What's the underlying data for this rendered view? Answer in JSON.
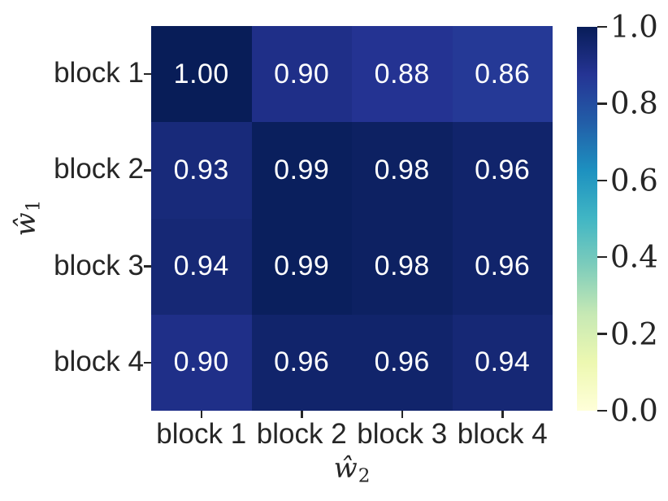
{
  "chart_data": {
    "type": "heatmap",
    "colormap": {
      "name": "YlGnBu",
      "stops": [
        [
          0.0,
          "#ffffd9"
        ],
        [
          0.125,
          "#edf8b1"
        ],
        [
          0.25,
          "#c7e9b4"
        ],
        [
          0.375,
          "#7fcdbb"
        ],
        [
          0.5,
          "#41b6c4"
        ],
        [
          0.625,
          "#1d91c0"
        ],
        [
          0.75,
          "#225ea8"
        ],
        [
          0.875,
          "#253494"
        ],
        [
          1.0,
          "#081d58"
        ]
      ]
    },
    "x_axis": {
      "label_base": "ŵ",
      "label_sub": "2",
      "categories": [
        "block 1",
        "block 2",
        "block 3",
        "block 4"
      ]
    },
    "y_axis": {
      "label_base": "ŵ",
      "label_sub": "1",
      "categories": [
        "block 1",
        "block 2",
        "block 3",
        "block 4"
      ]
    },
    "rows": [
      [
        1.0,
        0.9,
        0.88,
        0.86
      ],
      [
        0.93,
        0.99,
        0.98,
        0.96
      ],
      [
        0.94,
        0.99,
        0.98,
        0.96
      ],
      [
        0.9,
        0.96,
        0.96,
        0.94
      ]
    ],
    "value_decimals": 2,
    "annotation_color": "#ffffff",
    "tick_label_color": "#262626",
    "colorbar": {
      "min": 0.0,
      "max": 1.0,
      "ticks": [
        {
          "value": 1.0,
          "label": "1.0"
        },
        {
          "value": 0.8,
          "label": "0.8"
        },
        {
          "value": 0.6,
          "label": "0.6"
        },
        {
          "value": 0.4,
          "label": "0.4"
        },
        {
          "value": 0.2,
          "label": "0.2"
        },
        {
          "value": 0.0,
          "label": "0.0"
        }
      ]
    }
  }
}
